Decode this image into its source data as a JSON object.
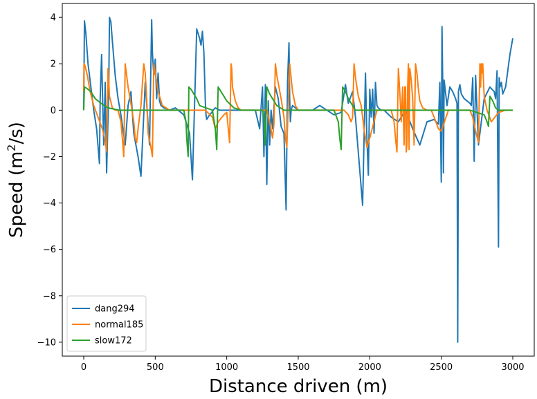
{
  "chart_data": {
    "type": "line",
    "title": "",
    "xlabel": "Distance driven (m)",
    "ylabel": "Speed (m²/s)",
    "xlim": [
      -150,
      3150
    ],
    "ylim": [
      -10.6,
      4.6
    ],
    "xticks": [
      0,
      500,
      1000,
      1500,
      2000,
      2500,
      3000
    ],
    "xtick_labels": [
      "0",
      "500",
      "1000",
      "1500",
      "2000",
      "2500",
      "3000"
    ],
    "yticks": [
      4,
      2,
      0,
      -2,
      -4,
      -6,
      -8,
      -10
    ],
    "ytick_labels": [
      "4",
      "2",
      "0",
      "−2",
      "−4",
      "−6",
      "−8",
      "−10"
    ],
    "legend_position": "lower-left",
    "grid": false,
    "series": [
      {
        "name": "dang294",
        "color": "#1f77b4",
        "x": [
          0,
          5,
          15,
          30,
          50,
          70,
          90,
          110,
          115,
          125,
          130,
          140,
          150,
          160,
          175,
          180,
          190,
          200,
          220,
          240,
          260,
          290,
          310,
          330,
          350,
          380,
          400,
          430,
          460,
          475,
          480,
          490,
          500,
          510,
          520,
          530,
          540,
          560,
          600,
          640,
          700,
          740,
          760,
          790,
          810,
          820,
          830,
          840,
          850,
          855,
          860,
          870,
          880,
          895,
          905,
          920,
          950,
          1000,
          1050,
          1100,
          1150,
          1200,
          1230,
          1250,
          1260,
          1270,
          1280,
          1290,
          1300,
          1310,
          1320,
          1340,
          1360,
          1380,
          1400,
          1415,
          1425,
          1435,
          1440,
          1445,
          1450,
          1460,
          1480,
          1500,
          1550,
          1600,
          1650,
          1700,
          1750,
          1800,
          1830,
          1850,
          1880,
          1900,
          1950,
          1970,
          1980,
          1990,
          2000,
          2010,
          2020,
          2030,
          2040,
          2050,
          2060,
          2080,
          2100,
          2150,
          2200,
          2250,
          2300,
          2350,
          2400,
          2450,
          2480,
          2490,
          2500,
          2505,
          2510,
          2515,
          2520,
          2540,
          2560,
          2580,
          2600,
          2610,
          2615,
          2620,
          2630,
          2640,
          2650,
          2660,
          2680,
          2700,
          2710,
          2720,
          2730,
          2740,
          2760,
          2800,
          2840,
          2870,
          2880,
          2890,
          2900,
          2905,
          2910,
          2920,
          2930,
          2950,
          2980,
          3000
        ],
        "y": [
          0,
          3.85,
          3.3,
          2.0,
          1.0,
          0.0,
          -0.8,
          -2.3,
          0.5,
          2.4,
          1.0,
          -1.5,
          1.2,
          -2.7,
          0.9,
          4.0,
          3.8,
          3.0,
          1.5,
          0.5,
          -0.2,
          -1.5,
          0.2,
          0.8,
          -1.0,
          -2.0,
          -2.85,
          1.2,
          -1.5,
          3.9,
          2.5,
          1.5,
          2.2,
          0.5,
          1.6,
          0.4,
          0.2,
          0.1,
          0.0,
          0.1,
          -0.2,
          -1.0,
          -3.0,
          3.5,
          3.1,
          2.8,
          3.4,
          2.5,
          0.4,
          -0.2,
          -0.4,
          -0.3,
          -0.2,
          -0.1,
          0.0,
          0.1,
          0.0,
          0.0,
          0.0,
          0.0,
          0.0,
          0.0,
          -0.8,
          1.0,
          -2.0,
          1.1,
          -3.2,
          0.4,
          -1.5,
          0.0,
          -0.8,
          1.0,
          0.5,
          -0.7,
          -1.0,
          -4.3,
          1.2,
          2.9,
          0.5,
          -0.5,
          0.0,
          0.2,
          0.1,
          0.0,
          0.0,
          0.0,
          0.2,
          0.0,
          -0.2,
          -0.1,
          1.1,
          0.3,
          0.8,
          -0.3,
          -4.1,
          1.6,
          -1.2,
          -2.8,
          0.9,
          -0.3,
          0.9,
          -1.0,
          1.2,
          0.2,
          0.1,
          0.0,
          0.0,
          -0.3,
          -0.5,
          0.0,
          -0.8,
          -1.5,
          -0.5,
          -0.4,
          -0.6,
          1.2,
          -3.1,
          3.6,
          1.2,
          -2.7,
          1.3,
          0.2,
          1.0,
          0.8,
          0.5,
          0.3,
          -10.0,
          0.8,
          1.1,
          0.7,
          0.6,
          0.5,
          0.4,
          0.3,
          0.2,
          1.4,
          -2.2,
          1.5,
          -1.5,
          0.5,
          1.0,
          0.8,
          0.5,
          1.7,
          -5.9,
          1.4,
          1.0,
          1.2,
          0.7,
          1.0,
          2.4,
          3.1
        ]
      },
      {
        "name": "normal185",
        "color": "#ff7f0e",
        "x": [
          0,
          2,
          10,
          25,
          45,
          70,
          100,
          130,
          150,
          160,
          170,
          175,
          180,
          200,
          220,
          240,
          260,
          270,
          280,
          290,
          310,
          330,
          350,
          360,
          370,
          380,
          400,
          420,
          430,
          440,
          450,
          470,
          480,
          490,
          500,
          520,
          550,
          600,
          650,
          700,
          730,
          740,
          760,
          770,
          780,
          800,
          850,
          900,
          920,
          940,
          980,
          1000,
          1020,
          1030,
          1035,
          1040,
          1060,
          1080,
          1100,
          1150,
          1200,
          1240,
          1280,
          1300,
          1320,
          1330,
          1340,
          1350,
          1380,
          1400,
          1410,
          1420,
          1440,
          1460,
          1480,
          1500,
          1550,
          1600,
          1650,
          1700,
          1750,
          1800,
          1820,
          1850,
          1870,
          1880,
          1890,
          1900,
          1920,
          1940,
          1960,
          1980,
          2000,
          2050,
          2100,
          2150,
          2170,
          2180,
          2190,
          2200,
          2210,
          2220,
          2230,
          2240,
          2245,
          2250,
          2255,
          2260,
          2265,
          2270,
          2275,
          2280,
          2290,
          2300,
          2310,
          2320,
          2330,
          2340,
          2350,
          2370,
          2400,
          2430,
          2450,
          2480,
          2500,
          2550,
          2600,
          2650,
          2680,
          2700,
          2720,
          2740,
          2760,
          2770,
          2775,
          2780,
          2785,
          2790,
          2800,
          2820,
          2850,
          2900,
          2950,
          3000
        ],
        "y": [
          0.8,
          2.0,
          1.9,
          1.5,
          0.8,
          0.2,
          -0.3,
          -0.8,
          -1.3,
          -1.8,
          1.8,
          1.3,
          0.6,
          0.1,
          0.0,
          0.0,
          -0.5,
          -1.2,
          -2.0,
          2.0,
          1.0,
          0.3,
          -0.5,
          -1.2,
          -1.4,
          -0.8,
          0.2,
          2.0,
          1.6,
          0.5,
          -1.0,
          -1.6,
          -2.0,
          2.0,
          1.6,
          0.8,
          0.2,
          0.0,
          0.0,
          0.0,
          0.0,
          0.0,
          0.0,
          0.0,
          0.0,
          0.0,
          0.0,
          -0.3,
          -0.8,
          -0.5,
          -0.2,
          -0.1,
          -1.4,
          2.0,
          1.8,
          1.0,
          0.4,
          0.1,
          0.0,
          0.0,
          0.0,
          0.0,
          0.0,
          -0.5,
          -1.2,
          -0.6,
          2.0,
          1.5,
          0.5,
          -0.3,
          -1.2,
          -1.6,
          2.0,
          0.8,
          0.2,
          0.0,
          0.0,
          0.0,
          0.0,
          0.0,
          0.0,
          0.0,
          0.0,
          -0.2,
          -0.5,
          -0.3,
          2.0,
          1.4,
          0.6,
          0.2,
          -0.8,
          -1.6,
          -1.2,
          0.0,
          0.0,
          0.0,
          -0.5,
          -1.2,
          -1.8,
          1.8,
          0.8,
          -0.5,
          1.0,
          -1.5,
          1.0,
          1.0,
          -1.8,
          -1.5,
          1.0,
          2.0,
          -1.7,
          1.8,
          1.3,
          0.5,
          -1.5,
          2.0,
          1.6,
          0.9,
          0.4,
          0.1,
          0.0,
          0.0,
          -0.3,
          -0.8,
          -0.9,
          0.0,
          0.0,
          0.0,
          0.0,
          0.0,
          -0.3,
          -0.9,
          -1.4,
          2.0,
          1.0,
          2.0,
          1.6,
          2.0,
          0.6,
          0.0,
          -0.5,
          -0.1,
          0.0,
          0.0
        ]
      },
      {
        "name": "slow172",
        "color": "#2ca02c",
        "x": [
          0,
          5,
          20,
          50,
          80,
          120,
          170,
          250,
          350,
          450,
          550,
          650,
          700,
          715,
          720,
          725,
          730,
          735,
          750,
          770,
          790,
          810,
          900,
          920,
          930,
          940,
          960,
          980,
          1000,
          1050,
          1100,
          1150,
          1200,
          1250,
          1260,
          1265,
          1270,
          1280,
          1300,
          1330,
          1350,
          1400,
          1450,
          1500,
          1550,
          1600,
          1650,
          1700,
          1750,
          1780,
          1790,
          1800,
          1810,
          1830,
          1850,
          1880,
          1900,
          1950,
          2000,
          2100,
          2200,
          2300,
          2400,
          2500,
          2600,
          2700,
          2800,
          2820,
          2830,
          2840,
          2860,
          2880,
          2900,
          3000
        ],
        "y": [
          0,
          1.0,
          0.95,
          0.8,
          0.5,
          0.3,
          0.1,
          0.0,
          0.0,
          0.0,
          0.0,
          0.0,
          0.0,
          -0.5,
          -1.2,
          -1.6,
          -2.0,
          1.0,
          0.9,
          0.7,
          0.5,
          0.2,
          0.0,
          -0.8,
          -1.7,
          1.0,
          0.8,
          0.6,
          0.4,
          0.1,
          0.0,
          0.0,
          0.0,
          0.0,
          -0.3,
          -1.0,
          -1.5,
          1.0,
          0.7,
          0.4,
          0.2,
          0.0,
          0.0,
          0.0,
          0.0,
          0.0,
          0.0,
          0.0,
          0.0,
          -0.5,
          -1.2,
          -1.7,
          1.0,
          0.8,
          0.5,
          0.2,
          0.0,
          0.0,
          0.0,
          0.0,
          0.0,
          0.0,
          0.0,
          0.0,
          0.0,
          0.0,
          -0.2,
          -0.5,
          -0.7,
          0.6,
          0.4,
          0.1,
          0.0,
          0.0
        ]
      }
    ]
  }
}
